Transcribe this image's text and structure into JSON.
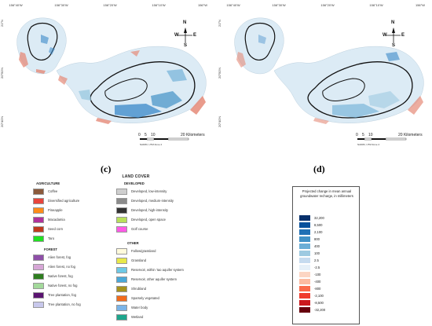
{
  "panels": [
    {
      "id": "c",
      "letter": "(c)",
      "lon_ticks": [
        "156°40'W",
        "156°30'W",
        "156°20'W",
        "156°10'W",
        "156°W"
      ],
      "lat_ticks": [
        "21°N",
        "20°50'N",
        "20°40'N"
      ],
      "compass": {
        "n": "N",
        "s": "S",
        "e": "E",
        "w": "W"
      },
      "scale": {
        "ticks": [
          "0",
          "5",
          "10",
          "20 Kilometers"
        ]
      },
      "projection": "NAD83, UTM Zone 4"
    },
    {
      "id": "d",
      "letter": "(d)",
      "lon_ticks": [
        "156°40'W",
        "156°30'W",
        "156°20'W",
        "156°10'W",
        "156°W"
      ],
      "lat_ticks": [
        "21°N",
        "20°50'N",
        "20°40'N"
      ],
      "compass": {
        "n": "N",
        "s": "S",
        "e": "E",
        "w": "W"
      },
      "scale": {
        "ticks": [
          "0",
          "5",
          "10",
          "20 Kilometers"
        ]
      },
      "projection": "NAD83, UTM Zone 4"
    }
  ],
  "land_cover_legend": {
    "title": "LAND COVER",
    "groups": [
      {
        "heading": "AGRICULTURE",
        "items": [
          {
            "label": "Coffee",
            "color": "#8b5a3c"
          },
          {
            "label": "Diversified agriculture",
            "color": "#e8453c"
          },
          {
            "label": "Pineapple",
            "color": "#ff8c1a"
          },
          {
            "label": "Macadamia",
            "color": "#b0329c"
          },
          {
            "label": "Seed corn",
            "color": "#c03a1e"
          },
          {
            "label": "Taro",
            "color": "#22e022"
          }
        ]
      },
      {
        "heading": "FOREST",
        "items": [
          {
            "label": "Alien forest, fog",
            "color": "#8e4fa8"
          },
          {
            "label": "Alien forest, no fog",
            "color": "#d6a6d6"
          },
          {
            "label": "Native forest, fog",
            "color": "#2e7d1f"
          },
          {
            "label": "Native forest, no fog",
            "color": "#a3d99b"
          },
          {
            "label": "Tree plantation, fog",
            "color": "#5a1470"
          },
          {
            "label": "Tree plantation, no fog",
            "color": "#c8c8ec"
          }
        ]
      },
      {
        "heading": "DEVELOPED",
        "items": [
          {
            "label": "Developed, low-intensity",
            "color": "#cfcfcf"
          },
          {
            "label": "Developed, medium-intensity",
            "color": "#8c8c8c"
          },
          {
            "label": "Developed, high-intensity",
            "color": "#333333"
          },
          {
            "label": "Developed, open space",
            "color": "#b8e05a"
          },
          {
            "label": "Golf course",
            "color": "#ff5ae6"
          }
        ]
      },
      {
        "heading": "OTHER",
        "items": [
          {
            "label": "Fallow/grassland",
            "color": "#fffadc"
          },
          {
            "label": "Grassland",
            "color": "#e8e84a"
          },
          {
            "label": "Reservoir, within 'Iao aquifer system",
            "color": "#6ec9e6"
          },
          {
            "label": "Reservoir, other aquifer system",
            "color": "#4aa8d8"
          },
          {
            "label": "Shrubland",
            "color": "#a6921c"
          },
          {
            "label": "Sparsely vegetated",
            "color": "#f26b1c"
          },
          {
            "label": "Water body",
            "color": "#7ab4e8"
          },
          {
            "label": "Wetland",
            "color": "#1ea68c"
          }
        ]
      }
    ]
  },
  "recharge_legend": {
    "title": "Projected change in mean annual groundwater recharge, in millimeters",
    "classes": [
      {
        "label": "32,200",
        "color": "#08306b"
      },
      {
        "label": "8,500",
        "color": "#08519c"
      },
      {
        "label": "2,100",
        "color": "#2171b5"
      },
      {
        "label": "800",
        "color": "#4292c6"
      },
      {
        "label": "400",
        "color": "#6baed6"
      },
      {
        "label": "100",
        "color": "#9ecae1"
      },
      {
        "label": "2.5",
        "color": "#c6dbef"
      },
      {
        "label": "-2.5",
        "color": "#e6f0f8"
      },
      {
        "label": "-100",
        "color": "#fcd5c3"
      },
      {
        "label": "-400",
        "color": "#fcbba1"
      },
      {
        "label": "-800",
        "color": "#fb6a4a"
      },
      {
        "label": "-2,100",
        "color": "#ef3b2c"
      },
      {
        "label": "-8,500",
        "color": "#cb181d"
      },
      {
        "label": "-32,200",
        "color": "#67000d"
      }
    ]
  },
  "colors": {
    "island_fill": "#dcebf5",
    "outline": "#111111",
    "gain": "#3a88c8",
    "loss": "#e58a78"
  }
}
